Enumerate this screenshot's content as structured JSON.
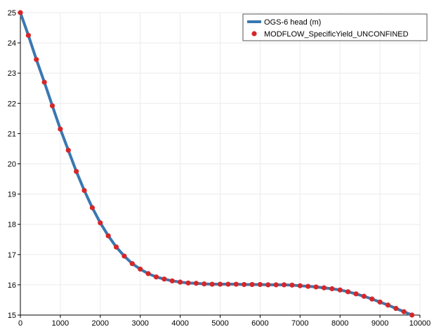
{
  "chart_data": {
    "type": "line",
    "title": "",
    "xlabel": "",
    "ylabel": "",
    "xlim": [
      0,
      10000
    ],
    "ylim": [
      15,
      25
    ],
    "x_ticks": [
      0,
      1000,
      2000,
      3000,
      4000,
      5000,
      6000,
      7000,
      8000,
      9000,
      10000
    ],
    "y_ticks": [
      15,
      16,
      17,
      18,
      19,
      20,
      21,
      22,
      23,
      24,
      25
    ],
    "x_tick_labels": [
      "0",
      "1000",
      "2000",
      "3000",
      "4000",
      "5000",
      "6000",
      "7000",
      "8000",
      "9000",
      "10000"
    ],
    "y_tick_labels": [
      "15",
      "16",
      "17",
      "18",
      "19",
      "20",
      "21",
      "22",
      "23",
      "24",
      "25"
    ],
    "grid": true,
    "legend_position": "top-right",
    "series": [
      {
        "name": "OGS-6 head (m)",
        "style": "line",
        "color": "#3a78b1",
        "x": [
          0,
          200,
          400,
          600,
          800,
          1000,
          1200,
          1400,
          1600,
          1800,
          2000,
          2200,
          2400,
          2600,
          2800,
          3000,
          3200,
          3400,
          3600,
          3800,
          4000,
          4200,
          4400,
          4600,
          4800,
          5000,
          5200,
          5400,
          5600,
          5800,
          6000,
          6200,
          6400,
          6600,
          6800,
          7000,
          7200,
          7400,
          7600,
          7800,
          8000,
          8200,
          8400,
          8600,
          8800,
          9000,
          9200,
          9400,
          9600,
          9800
        ],
        "y": [
          25.0,
          24.25,
          23.45,
          22.7,
          21.92,
          21.15,
          20.45,
          19.75,
          19.12,
          18.55,
          18.05,
          17.62,
          17.25,
          16.95,
          16.7,
          16.52,
          16.37,
          16.26,
          16.19,
          16.13,
          16.09,
          16.06,
          16.05,
          16.03,
          16.02,
          16.02,
          16.02,
          16.02,
          16.01,
          16.01,
          16.01,
          16.0,
          16.0,
          16.0,
          15.99,
          15.97,
          15.95,
          15.93,
          15.9,
          15.87,
          15.83,
          15.77,
          15.7,
          15.62,
          15.53,
          15.43,
          15.33,
          15.22,
          15.11,
          15.0
        ]
      },
      {
        "name": "MODFLOW_SpecificYield_UNCONFINED",
        "style": "marker",
        "color": "#d62728",
        "x": [
          0,
          200,
          400,
          600,
          800,
          1000,
          1200,
          1400,
          1600,
          1800,
          2000,
          2200,
          2400,
          2600,
          2800,
          3000,
          3200,
          3400,
          3600,
          3800,
          4000,
          4200,
          4400,
          4600,
          4800,
          5000,
          5200,
          5400,
          5600,
          5800,
          6000,
          6200,
          6400,
          6600,
          6800,
          7000,
          7200,
          7400,
          7600,
          7800,
          8000,
          8200,
          8400,
          8600,
          8800,
          9000,
          9200,
          9400,
          9600,
          9800
        ],
        "y": [
          25.0,
          24.25,
          23.45,
          22.7,
          21.92,
          21.15,
          20.45,
          19.75,
          19.12,
          18.55,
          18.05,
          17.62,
          17.25,
          16.95,
          16.7,
          16.52,
          16.37,
          16.26,
          16.19,
          16.13,
          16.09,
          16.06,
          16.05,
          16.03,
          16.02,
          16.02,
          16.02,
          16.02,
          16.01,
          16.01,
          16.01,
          16.0,
          16.0,
          16.0,
          15.99,
          15.97,
          15.95,
          15.93,
          15.9,
          15.87,
          15.83,
          15.77,
          15.7,
          15.62,
          15.53,
          15.43,
          15.33,
          15.22,
          15.11,
          15.0
        ]
      }
    ]
  }
}
